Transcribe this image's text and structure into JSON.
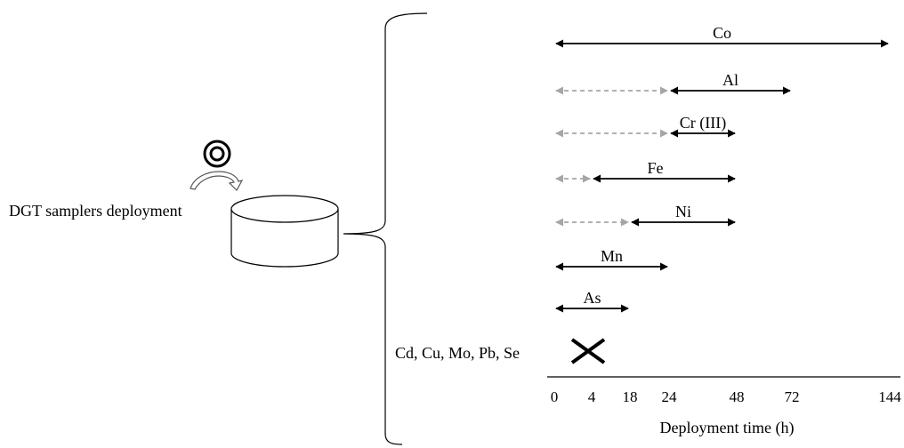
{
  "deployment_label": "DGT samplers deployment",
  "excluded_label": "Cd, Cu, Mo, Pb, Se",
  "axis": {
    "label": "Deployment time (h)",
    "ticks": [
      "0",
      "4",
      "18",
      "24",
      "48",
      "72",
      "144"
    ]
  },
  "elements": [
    {
      "name": "Co",
      "solid_from": "0",
      "solid_to": "144",
      "dashed_from": null
    },
    {
      "name": "Al",
      "solid_from": "24",
      "solid_to": "72",
      "dashed_from": "0"
    },
    {
      "name": "Cr (III)",
      "solid_from": "24",
      "solid_to": "48",
      "dashed_from": "0"
    },
    {
      "name": "Fe",
      "solid_from": "4",
      "solid_to": "48",
      "dashed_from": "0"
    },
    {
      "name": "Ni",
      "solid_from": "18",
      "solid_to": "48",
      "dashed_from": "0"
    },
    {
      "name": "Mn",
      "solid_from": "0",
      "solid_to": "24",
      "dashed_from": null
    },
    {
      "name": "As",
      "solid_from": "0",
      "solid_to": "18",
      "dashed_from": null
    }
  ],
  "colors": {
    "solid_arrow": "#000000",
    "dashed_arrow": "#a6a6a6",
    "cross": "#000000"
  },
  "icons": [
    "target-icon",
    "curved-arrow-icon",
    "container-cylinder-icon",
    "brace-icon",
    "cross-icon"
  ]
}
